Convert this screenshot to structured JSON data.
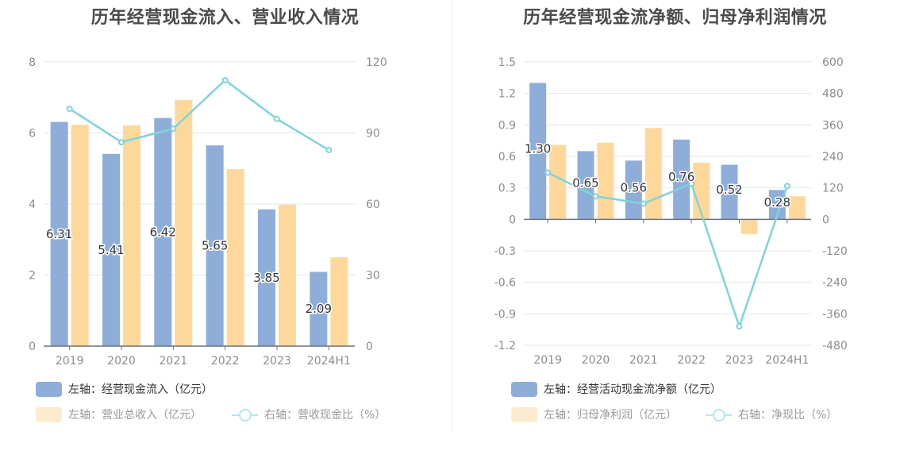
{
  "colors": {
    "bar1": "#8eadd9",
    "bar2": "#fed89b",
    "line": "#7fd4d9",
    "grid": "#e3e6f2",
    "axis": "#6e7079",
    "tick_text": "#8c8c8c",
    "title": "#4a4a4a",
    "legend_bar2_dim": "#fdebd0",
    "legend_line_dim": "#b6e6ea"
  },
  "chart_data": [
    {
      "type": "bar",
      "title": "历年经营现金流入、营业收入情况",
      "categories": [
        "2019",
        "2020",
        "2021",
        "2022",
        "2023",
        "2024H1"
      ],
      "left_axis": {
        "ylim": [
          0,
          8
        ],
        "ticks": [
          "0",
          "2",
          "4",
          "6",
          "8"
        ]
      },
      "right_axis": {
        "ylim": [
          0,
          120
        ],
        "ticks": [
          "0",
          "30",
          "60",
          "90",
          "120"
        ]
      },
      "grid": true,
      "legend_position": "bottom-left",
      "series": [
        {
          "name": "左轴：经营现金流入（亿元）",
          "kind": "bar",
          "axis": "left",
          "values": [
            6.31,
            5.41,
            6.42,
            5.65,
            3.85,
            2.09
          ],
          "labels": [
            "6.31",
            "5.41",
            "6.42",
            "5.65",
            "3.85",
            "2.09"
          ]
        },
        {
          "name": "左轴：营业总收入（亿元）",
          "kind": "bar",
          "axis": "left",
          "values": [
            6.23,
            6.21,
            6.93,
            4.98,
            3.98,
            2.5
          ]
        },
        {
          "name": "右轴：营收现金比（%）",
          "kind": "line",
          "axis": "right",
          "values": [
            100.2,
            86.1,
            91.8,
            112.3,
            95.9,
            82.8
          ]
        }
      ]
    },
    {
      "type": "bar",
      "title": "历年经营现金流净额、归母净利润情况",
      "categories": [
        "2019",
        "2020",
        "2021",
        "2022",
        "2023",
        "2024H1"
      ],
      "left_axis": {
        "ylim": [
          -1.2,
          1.5
        ],
        "ticks": [
          "-1.2",
          "-0.9",
          "-0.6",
          "-0.3",
          "0",
          "0.3",
          "0.6",
          "0.9",
          "1.2",
          "1.5"
        ]
      },
      "right_axis": {
        "ylim": [
          -480,
          600
        ],
        "ticks": [
          "-480",
          "-360",
          "-240",
          "-120",
          "0",
          "120",
          "240",
          "360",
          "480",
          "600"
        ]
      },
      "grid": true,
      "legend_position": "bottom-left",
      "series": [
        {
          "name": "左轴：经营活动现金流净额（亿元）",
          "kind": "bar",
          "axis": "left",
          "values": [
            1.3,
            0.65,
            0.56,
            0.76,
            0.52,
            0.28
          ],
          "labels": [
            "1.30",
            "0.65",
            "0.56",
            "0.76",
            "0.52",
            "0.28"
          ]
        },
        {
          "name": "左轴：归母净利润（亿元）",
          "kind": "bar",
          "axis": "left",
          "values": [
            0.71,
            0.73,
            0.87,
            0.54,
            -0.14,
            0.22
          ]
        },
        {
          "name": "右轴：净现比（%）",
          "kind": "line",
          "axis": "right",
          "values": [
            178,
            88,
            60,
            136,
            -408,
            127
          ]
        }
      ]
    }
  ]
}
